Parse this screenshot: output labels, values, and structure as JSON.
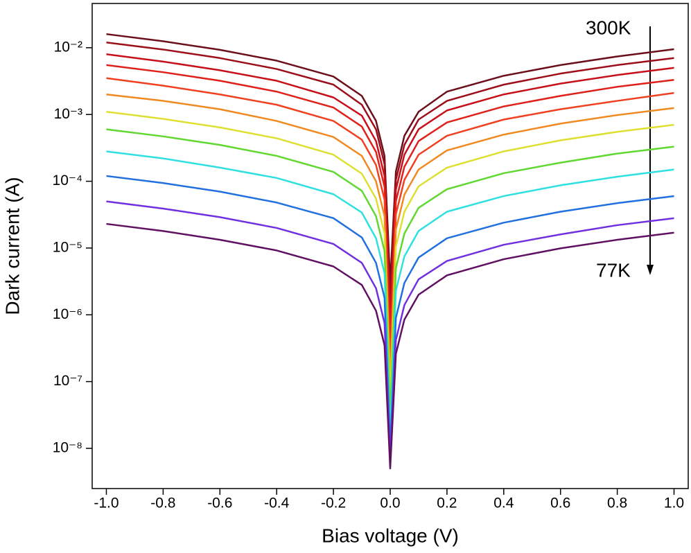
{
  "chart_data": {
    "type": "line",
    "x_label": "Bias voltage (V)",
    "y_label": "Dark current (A)",
    "log_y": true,
    "xlim": [
      -1.05,
      1.05
    ],
    "ylim": [
      2.5e-09,
      0.046
    ],
    "xticks": [
      {
        "value": -1,
        "label": "-1.0"
      },
      {
        "value": -0.8,
        "label": "-0.8"
      },
      {
        "value": -0.6,
        "label": "-0.6"
      },
      {
        "value": -0.4,
        "label": "-0.4"
      },
      {
        "value": -0.2,
        "label": "-0.2"
      },
      {
        "value": 0,
        "label": "0.0"
      },
      {
        "value": 0.2,
        "label": "0.2"
      },
      {
        "value": 0.4,
        "label": "0.4"
      },
      {
        "value": 0.6,
        "label": "0.6"
      },
      {
        "value": 0.8,
        "label": "0.8"
      },
      {
        "value": 1,
        "label": "1.0"
      }
    ],
    "yticks": [
      {
        "value": 1e-08,
        "label": "10⁻⁸"
      },
      {
        "value": 1e-07,
        "label": "10⁻⁷"
      },
      {
        "value": 1e-06,
        "label": "10⁻⁶"
      },
      {
        "value": 1e-05,
        "label": "10⁻⁵"
      },
      {
        "value": 0.0001,
        "label": "10⁻⁴"
      },
      {
        "value": 0.001,
        "label": "10⁻³"
      },
      {
        "value": 0.01,
        "label": "10⁻²"
      }
    ],
    "annotations": [
      {
        "text": "300K"
      },
      {
        "text": "77K"
      }
    ],
    "x": [
      -1,
      -0.8,
      -0.6,
      -0.4,
      -0.2,
      -0.1,
      -0.05,
      -0.02,
      0,
      0.02,
      0.05,
      0.1,
      0.2,
      0.4,
      0.6,
      0.8,
      1
    ],
    "series": [
      {
        "color": "#6b0f1a",
        "values": [
          0.016,
          0.0125,
          0.0093,
          0.0064,
          0.0037,
          0.0019,
          0.0008,
          0.00024,
          3e-06,
          0.00014,
          0.00048,
          0.0011,
          0.0022,
          0.0038,
          0.0055,
          0.0074,
          0.0095
        ]
      },
      {
        "color": "#9c0f1a",
        "values": [
          0.012,
          0.0094,
          0.007,
          0.0048,
          0.0028,
          0.0014,
          0.0006,
          0.00018,
          1.5e-06,
          0.000105,
          0.00035,
          0.00084,
          0.0016,
          0.0028,
          0.0041,
          0.0055,
          0.007
        ]
      },
      {
        "color": "#c8101a",
        "values": [
          0.008,
          0.0062,
          0.0046,
          0.0032,
          0.0018,
          0.00096,
          0.0004,
          0.00012,
          8e-07,
          7.5e-05,
          0.00025,
          0.0006,
          0.00115,
          0.002,
          0.0029,
          0.0039,
          0.005
        ]
      },
      {
        "color": "#e0201a",
        "values": [
          0.0055,
          0.0043,
          0.0032,
          0.0022,
          0.00127,
          0.00066,
          0.000275,
          8.3e-05,
          4e-07,
          5e-05,
          0.000165,
          0.0004,
          0.00076,
          0.00132,
          0.0019,
          0.0026,
          0.0033
        ]
      },
      {
        "color": "#f04020",
        "values": [
          0.0035,
          0.0027,
          0.002,
          0.0014,
          0.0008,
          0.00042,
          0.000175,
          5.3e-05,
          2e-07,
          3.2e-05,
          0.000105,
          0.00025,
          0.00048,
          0.00084,
          0.0012,
          0.0016,
          0.0021
        ]
      },
      {
        "color": "#f08a20",
        "values": [
          0.002,
          0.0016,
          0.0012,
          0.0008,
          0.00046,
          0.00024,
          0.0001,
          3e-05,
          1e-07,
          1.9e-05,
          6.3e-05,
          0.00015,
          0.00029,
          0.0005,
          0.00073,
          0.00098,
          0.00125
        ]
      },
      {
        "color": "#dde030",
        "values": [
          0.0011,
          0.00086,
          0.00064,
          0.00044,
          0.00025,
          0.00013,
          5.5e-05,
          1.65e-05,
          6e-08,
          1.05e-05,
          3.5e-05,
          8.4e-05,
          0.00016,
          0.00028,
          0.00041,
          0.00055,
          0.0007
        ]
      },
      {
        "color": "#60d830",
        "values": [
          0.0006,
          0.00047,
          0.00035,
          0.00024,
          0.000138,
          7.2e-05,
          3e-05,
          9e-06,
          3e-08,
          5e-06,
          1.65e-05,
          4e-05,
          7.6e-05,
          0.000132,
          0.00019,
          0.00026,
          0.00033
        ]
      },
      {
        "color": "#30e0e0",
        "values": [
          0.00028,
          0.00022,
          0.00016,
          0.000112,
          6.4e-05,
          3.4e-05,
          1.4e-05,
          4.2e-06,
          1.5e-08,
          2.3e-06,
          7.5e-06,
          1.8e-05,
          3.5e-05,
          6e-05,
          8.7e-05,
          0.000117,
          0.00015
        ]
      },
      {
        "color": "#2070e0",
        "values": [
          0.00012,
          9.4e-05,
          7e-05,
          4.8e-05,
          2.8e-05,
          1.44e-05,
          6e-06,
          1.8e-06,
          1e-08,
          9e-07,
          3e-06,
          7.2e-06,
          1.4e-05,
          2.4e-05,
          3.5e-05,
          4.7e-05,
          6e-05
        ]
      },
      {
        "color": "#7030e0",
        "values": [
          5e-05,
          3.9e-05,
          2.9e-05,
          2e-05,
          1.15e-05,
          6e-06,
          2.5e-06,
          7.5e-07,
          7e-09,
          4.2e-07,
          1.4e-06,
          3.4e-06,
          6.4e-06,
          1.12e-05,
          1.6e-05,
          2.2e-05,
          2.8e-05
        ]
      },
      {
        "color": "#601060",
        "values": [
          2.3e-05,
          1.8e-05,
          1.33e-05,
          9.2e-06,
          5.3e-06,
          2.8e-06,
          1.15e-06,
          3.5e-07,
          5e-09,
          2.6e-07,
          8.5e-07,
          2e-06,
          3.9e-06,
          6.8e-06,
          9.9e-06,
          1.33e-05,
          1.7e-05
        ]
      }
    ]
  }
}
